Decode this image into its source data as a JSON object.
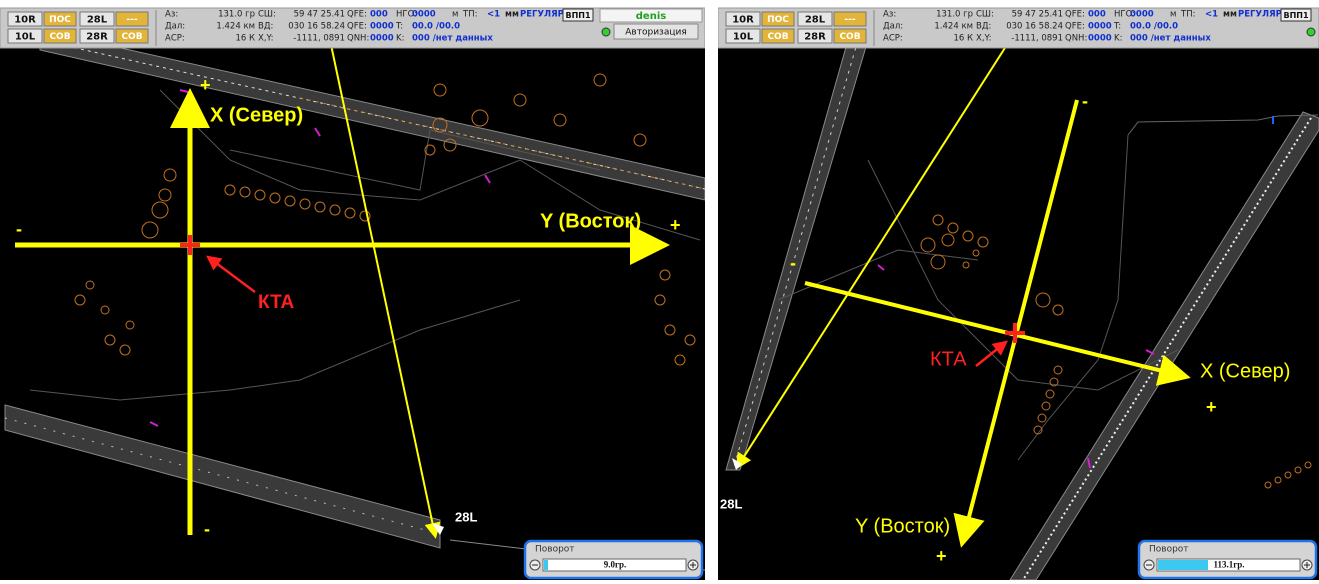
{
  "panels": [
    {
      "runways": [
        [
          "10R",
          "ПОС"
        ],
        [
          "28L",
          "---"
        ],
        [
          "10L",
          "СОВ"
        ],
        [
          "28R",
          "СОВ"
        ]
      ],
      "info": [
        [
          "Аз:",
          "131.0 гр"
        ],
        [
          "Дал:",
          "1.424 км"
        ],
        [
          "АСР:",
          "16 К"
        ],
        [
          "СШ:",
          "59 47 25.41"
        ],
        [
          "ВД:",
          "030 16 58.24"
        ],
        [
          "X,Y:",
          "-1111, 0891"
        ],
        [
          "QFE:",
          "000"
        ],
        [
          "QFE:",
          "0000"
        ],
        [
          "QNH:",
          "0000"
        ],
        [
          "НГО:",
          "0000"
        ],
        [
          "T:",
          "00.0 /00.0"
        ],
        [
          "K:",
          "000 /нет данных"
        ]
      ],
      "extra": [
        "м",
        "ТП:",
        "<1",
        "мм",
        "РЕГУЛЯР.",
        "ВПП1"
      ],
      "user": "denis",
      "auth": "Авторизация",
      "map": {
        "x_axis": "X (Север)",
        "y_axis": "Y (Восток)",
        "plus": "+",
        "minus": "-",
        "kta": "КТА",
        "runway": "28L",
        "rotate_label": "Поворот",
        "rotate_value": "9.0гр."
      }
    },
    {
      "runways": [
        [
          "10R",
          "ПОС"
        ],
        [
          "28L",
          "---"
        ],
        [
          "10L",
          "СОВ"
        ],
        [
          "28R",
          "СОВ"
        ]
      ],
      "info": [
        [
          "Аз:",
          "131.0 гр"
        ],
        [
          "Дал:",
          "1.424 км"
        ],
        [
          "АСР:",
          "16 К"
        ],
        [
          "СШ:",
          "59 47 25.41"
        ],
        [
          "ВД:",
          "030 16 58.24"
        ],
        [
          "X,Y:",
          "-1111, 0891"
        ],
        [
          "QFE:",
          "000"
        ],
        [
          "QFE:",
          "0000"
        ],
        [
          "QNH:",
          "0000"
        ],
        [
          "НГО:",
          "0000"
        ],
        [
          "T:",
          "00.0 /00.0"
        ],
        [
          "K:",
          "000 /нет данных"
        ]
      ],
      "extra": [
        "м",
        "ТП:",
        "<1",
        "мм",
        "РЕГУЛЯР.",
        "ВПП1"
      ],
      "map": {
        "x_axis": "X (Север)",
        "y_axis": "Y (Восток)",
        "plus": "+",
        "minus": "-",
        "kta": "КТА",
        "runway": "28L",
        "rotate_label": "Поворот",
        "rotate_value": "113.1гр."
      }
    }
  ]
}
